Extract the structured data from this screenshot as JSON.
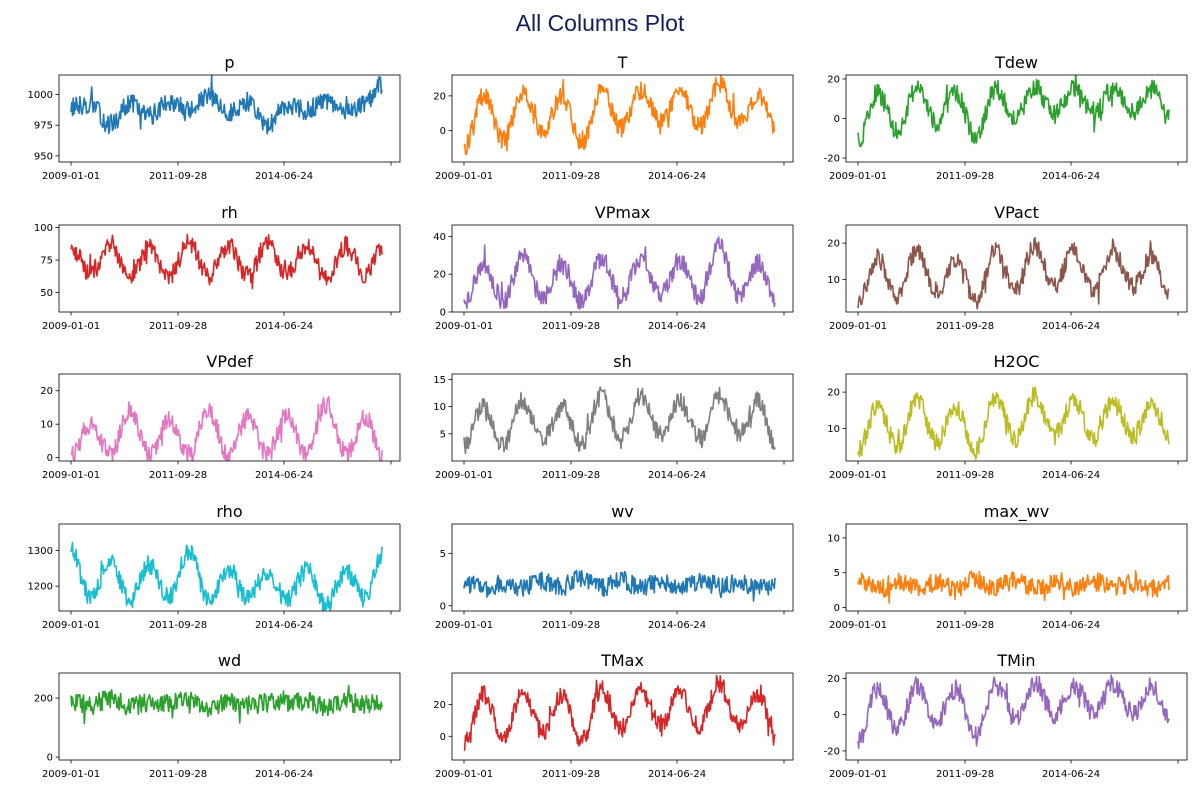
{
  "title": "All Columns Plot",
  "chart_data": [
    {
      "type": "line",
      "title": "p",
      "x_ticks": [
        "2009-01-01",
        "2011-09-28",
        "2014-06-24",
        ""
      ],
      "y_ticks": [
        950,
        975,
        1000
      ],
      "ylim": [
        945,
        1016
      ],
      "color": "#1f77b4",
      "series": [
        {
          "x": [
            "2009-01",
            "2009-07",
            "2010-01",
            "2010-07",
            "2011-01",
            "2011-07",
            "2012-01",
            "2012-07",
            "2013-01",
            "2013-07",
            "2014-01",
            "2014-07",
            "2015-01",
            "2015-07",
            "2016-01",
            "2016-07",
            "2016-12"
          ],
          "values": [
            990,
            992,
            975,
            993,
            983,
            995,
            987,
            998,
            985,
            994,
            975,
            992,
            987,
            994,
            985,
            993,
            1008
          ]
        }
      ]
    },
    {
      "type": "line",
      "title": "T",
      "x_ticks": [
        "2009-01-01",
        "2011-09-28",
        "2014-06-24",
        ""
      ],
      "y_ticks": [
        0,
        20
      ],
      "ylim": [
        -18,
        32
      ],
      "color": "#ff7f0e",
      "series": [
        {
          "x": [
            "2009-01",
            "2009-07",
            "2010-01",
            "2010-07",
            "2011-01",
            "2011-07",
            "2012-01",
            "2012-07",
            "2013-01",
            "2013-07",
            "2014-01",
            "2014-07",
            "2015-01",
            "2015-07",
            "2016-01",
            "2016-07",
            "2016-12"
          ],
          "values": [
            -10,
            20,
            -5,
            22,
            0,
            19,
            -8,
            24,
            2,
            23,
            5,
            22,
            3,
            27,
            4,
            21,
            2
          ]
        }
      ]
    },
    {
      "type": "line",
      "title": "Tdew",
      "x_ticks": [
        "2009-01-01",
        "2011-09-28",
        "2014-06-24",
        ""
      ],
      "y_ticks": [
        -20,
        0,
        20
      ],
      "ylim": [
        -22,
        22
      ],
      "color": "#2ca02c",
      "series": [
        {
          "x": [
            "2009-01",
            "2009-07",
            "2010-01",
            "2010-07",
            "2011-01",
            "2011-07",
            "2012-01",
            "2012-07",
            "2013-01",
            "2013-07",
            "2014-01",
            "2014-07",
            "2015-01",
            "2015-07",
            "2016-01",
            "2016-07",
            "2016-12"
          ],
          "values": [
            -12,
            13,
            -6,
            15,
            -2,
            13,
            -10,
            15,
            0,
            16,
            2,
            15,
            2,
            15,
            3,
            15,
            0
          ]
        }
      ]
    },
    {
      "type": "line",
      "title": "rh",
      "x_ticks": [
        "2009-01-01",
        "2011-09-28",
        "2014-06-24",
        ""
      ],
      "y_ticks": [
        50,
        75,
        100
      ],
      "ylim": [
        35,
        102
      ],
      "color": "#d62728",
      "series": [
        {
          "x": [
            "2009-01",
            "2009-07",
            "2010-01",
            "2010-07",
            "2011-01",
            "2011-07",
            "2012-01",
            "2012-07",
            "2013-01",
            "2013-07",
            "2014-01",
            "2014-07",
            "2015-01",
            "2015-07",
            "2016-01",
            "2016-07",
            "2016-12"
          ],
          "values": [
            85,
            65,
            88,
            60,
            85,
            62,
            88,
            63,
            86,
            62,
            88,
            64,
            87,
            60,
            86,
            63,
            85
          ]
        }
      ]
    },
    {
      "type": "line",
      "title": "VPmax",
      "x_ticks": [
        "2009-01-01",
        "2011-09-28",
        "2014-06-24",
        ""
      ],
      "y_ticks": [
        0,
        20,
        40
      ],
      "ylim": [
        0,
        46
      ],
      "color": "#9467bd",
      "series": [
        {
          "x": [
            "2009-01",
            "2009-07",
            "2010-01",
            "2010-07",
            "2011-01",
            "2011-07",
            "2012-01",
            "2012-07",
            "2013-01",
            "2013-07",
            "2014-01",
            "2014-07",
            "2015-01",
            "2015-07",
            "2016-01",
            "2016-07",
            "2016-12"
          ],
          "values": [
            4,
            25,
            6,
            30,
            7,
            25,
            5,
            28,
            8,
            28,
            9,
            27,
            8,
            35,
            9,
            26,
            6
          ]
        }
      ]
    },
    {
      "type": "line",
      "title": "VPact",
      "x_ticks": [
        "2009-01-01",
        "2011-09-28",
        "2014-06-24",
        ""
      ],
      "y_ticks": [
        10,
        20
      ],
      "ylim": [
        1,
        25
      ],
      "color": "#8c564b",
      "series": [
        {
          "x": [
            "2009-01",
            "2009-07",
            "2010-01",
            "2010-07",
            "2011-01",
            "2011-07",
            "2012-01",
            "2012-07",
            "2013-01",
            "2013-07",
            "2014-01",
            "2014-07",
            "2015-01",
            "2015-07",
            "2016-01",
            "2016-07",
            "2016-12"
          ],
          "values": [
            4,
            16,
            5,
            18,
            6,
            16,
            4,
            18,
            7,
            19,
            8,
            18,
            7,
            18,
            8,
            17,
            5
          ]
        }
      ]
    },
    {
      "type": "line",
      "title": "VPdef",
      "x_ticks": [
        "2009-01-01",
        "2011-09-28",
        "2014-06-24",
        ""
      ],
      "y_ticks": [
        0,
        10,
        20
      ],
      "ylim": [
        -1,
        25
      ],
      "color": "#e377c2",
      "series": [
        {
          "x": [
            "2009-01",
            "2009-07",
            "2010-01",
            "2010-07",
            "2011-01",
            "2011-07",
            "2012-01",
            "2012-07",
            "2013-01",
            "2013-07",
            "2014-01",
            "2014-07",
            "2015-01",
            "2015-07",
            "2016-01",
            "2016-07",
            "2016-12"
          ],
          "values": [
            1,
            10,
            1,
            14,
            1,
            11,
            1,
            14,
            1,
            12,
            1,
            13,
            1,
            16,
            1,
            12,
            1
          ]
        }
      ]
    },
    {
      "type": "line",
      "title": "sh",
      "x_ticks": [
        "2009-01-01",
        "2011-09-28",
        "2014-06-24",
        ""
      ],
      "y_ticks": [
        5,
        10,
        15
      ],
      "ylim": [
        0,
        16
      ],
      "color": "#7f7f7f",
      "series": [
        {
          "x": [
            "2009-01",
            "2009-07",
            "2010-01",
            "2010-07",
            "2011-01",
            "2011-07",
            "2012-01",
            "2012-07",
            "2013-01",
            "2013-07",
            "2014-01",
            "2014-07",
            "2015-01",
            "2015-07",
            "2016-01",
            "2016-07",
            "2016-12"
          ],
          "values": [
            3,
            10,
            3,
            11,
            4,
            10,
            3,
            12,
            4,
            12,
            5,
            11,
            4,
            12,
            5,
            11,
            3
          ]
        }
      ]
    },
    {
      "type": "line",
      "title": "H2OC",
      "x_ticks": [
        "2009-01-01",
        "2011-09-28",
        "2014-06-24",
        ""
      ],
      "y_ticks": [
        10,
        20
      ],
      "ylim": [
        1,
        25
      ],
      "color": "#bcbd22",
      "series": [
        {
          "x": [
            "2009-01",
            "2009-07",
            "2010-01",
            "2010-07",
            "2011-01",
            "2011-07",
            "2012-01",
            "2012-07",
            "2013-01",
            "2013-07",
            "2014-01",
            "2014-07",
            "2015-01",
            "2015-07",
            "2016-01",
            "2016-07",
            "2016-12"
          ],
          "values": [
            4,
            16,
            5,
            18,
            6,
            16,
            4,
            19,
            7,
            19,
            8,
            18,
            7,
            18,
            8,
            17,
            5
          ]
        }
      ]
    },
    {
      "type": "line",
      "title": "rho",
      "x_ticks": [
        "2009-01-01",
        "2011-09-28",
        "2014-06-24",
        ""
      ],
      "y_ticks": [
        1200,
        1300
      ],
      "ylim": [
        1130,
        1375
      ],
      "color": "#17becf",
      "series": [
        {
          "x": [
            "2009-01",
            "2009-07",
            "2010-01",
            "2010-07",
            "2011-01",
            "2011-07",
            "2012-01",
            "2012-07",
            "2013-01",
            "2013-07",
            "2014-01",
            "2014-07",
            "2015-01",
            "2015-07",
            "2016-01",
            "2016-07",
            "2016-12"
          ],
          "values": [
            1300,
            1170,
            1270,
            1160,
            1260,
            1170,
            1300,
            1160,
            1250,
            1165,
            1240,
            1160,
            1245,
            1150,
            1240,
            1165,
            1290
          ]
        }
      ]
    },
    {
      "type": "line",
      "title": "wv",
      "x_ticks": [
        "2009-01-01",
        "2011-09-28",
        "2014-06-24",
        ""
      ],
      "y_ticks": [
        0,
        5
      ],
      "ylim": [
        -0.5,
        7.8
      ],
      "color": "#1f77b4",
      "series": [
        {
          "x": [
            "2009-01",
            "2009-07",
            "2010-01",
            "2010-07",
            "2011-01",
            "2011-07",
            "2012-01",
            "2012-07",
            "2013-01",
            "2013-07",
            "2014-01",
            "2014-07",
            "2015-01",
            "2015-07",
            "2016-01",
            "2016-07",
            "2016-12"
          ],
          "values": [
            2.5,
            1.6,
            2.2,
            1.8,
            2.3,
            1.7,
            2.6,
            1.7,
            2.4,
            1.8,
            2.2,
            1.7,
            2.3,
            1.9,
            2.1,
            1.7,
            2.0
          ]
        }
      ]
    },
    {
      "type": "line",
      "title": "max_wv",
      "x_ticks": [
        "2009-01-01",
        "2011-09-28",
        "2014-06-24",
        ""
      ],
      "y_ticks": [
        0,
        5,
        10
      ],
      "ylim": [
        -0.5,
        12
      ],
      "color": "#ff7f0e",
      "series": [
        {
          "x": [
            "2009-01",
            "2009-07",
            "2010-01",
            "2010-07",
            "2011-01",
            "2011-07",
            "2012-01",
            "2012-07",
            "2013-01",
            "2013-07",
            "2014-01",
            "2014-07",
            "2015-01",
            "2015-07",
            "2016-01",
            "2016-07",
            "2016-12"
          ],
          "values": [
            4.0,
            2.6,
            3.6,
            2.8,
            3.6,
            2.7,
            4.1,
            2.8,
            3.8,
            2.9,
            3.6,
            2.7,
            3.7,
            3.0,
            3.4,
            2.8,
            3.2
          ]
        }
      ]
    },
    {
      "type": "line",
      "title": "wd",
      "x_ticks": [
        "2009-01-01",
        "2011-09-28",
        "2014-06-24",
        ""
      ],
      "y_ticks": [
        0,
        200
      ],
      "ylim": [
        -10,
        285
      ],
      "color": "#2ca02c",
      "series": [
        {
          "x": [
            "2009-01",
            "2009-07",
            "2010-01",
            "2010-07",
            "2011-01",
            "2011-07",
            "2012-01",
            "2012-07",
            "2013-01",
            "2013-07",
            "2014-01",
            "2014-07",
            "2015-01",
            "2015-07",
            "2016-01",
            "2016-07",
            "2016-12"
          ],
          "values": [
            190,
            175,
            200,
            170,
            185,
            180,
            195,
            170,
            190,
            175,
            185,
            180,
            190,
            170,
            185,
            180,
            190
          ]
        }
      ]
    },
    {
      "type": "line",
      "title": "TMax",
      "x_ticks": [
        "2009-01-01",
        "2011-09-28",
        "2014-06-24",
        ""
      ],
      "y_ticks": [
        0,
        20
      ],
      "ylim": [
        -15,
        40
      ],
      "color": "#d62728",
      "series": [
        {
          "x": [
            "2009-01",
            "2009-07",
            "2010-01",
            "2010-07",
            "2011-01",
            "2011-07",
            "2012-01",
            "2012-07",
            "2013-01",
            "2013-07",
            "2014-01",
            "2014-07",
            "2015-01",
            "2015-07",
            "2016-01",
            "2016-07",
            "2016-12"
          ],
          "values": [
            -5,
            26,
            0,
            28,
            3,
            25,
            -3,
            30,
            5,
            29,
            8,
            28,
            6,
            33,
            7,
            27,
            4
          ]
        }
      ]
    },
    {
      "type": "line",
      "title": "TMin",
      "x_ticks": [
        "2009-01-01",
        "2011-09-28",
        "2014-06-24",
        ""
      ],
      "y_ticks": [
        -20,
        0,
        20
      ],
      "ylim": [
        -25,
        23
      ],
      "color": "#9467bd",
      "series": [
        {
          "x": [
            "2009-01",
            "2009-07",
            "2010-01",
            "2010-07",
            "2011-01",
            "2011-07",
            "2012-01",
            "2012-07",
            "2013-01",
            "2013-07",
            "2014-01",
            "2014-07",
            "2015-01",
            "2015-07",
            "2016-01",
            "2016-07",
            "2016-12"
          ],
          "values": [
            -15,
            14,
            -8,
            16,
            -4,
            14,
            -12,
            16,
            -2,
            17,
            0,
            16,
            0,
            17,
            1,
            16,
            -2
          ]
        }
      ]
    }
  ]
}
